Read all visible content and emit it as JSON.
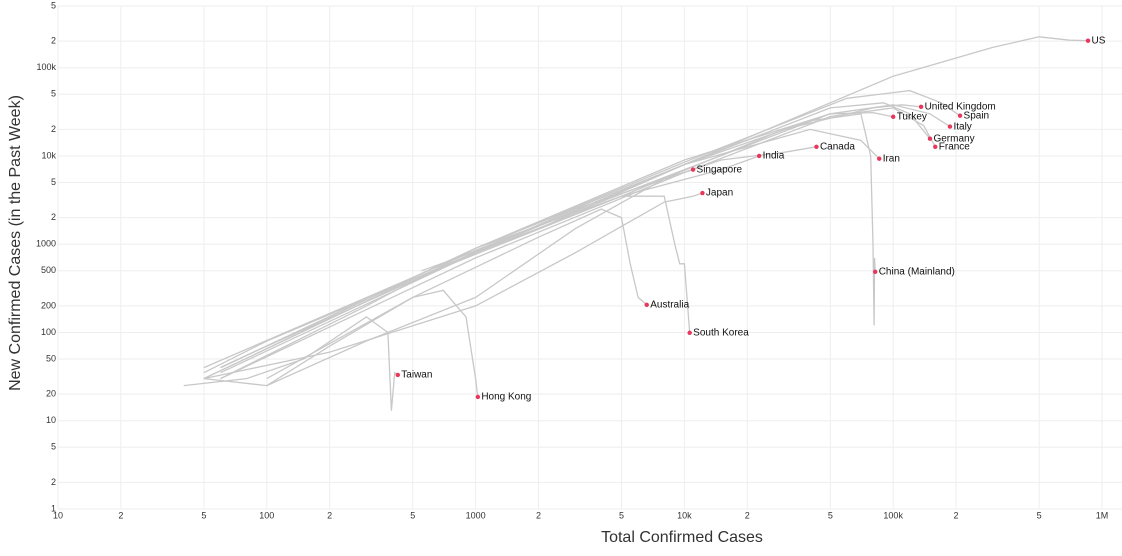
{
  "chart_data": {
    "type": "line",
    "x_label": "Total Confirmed Cases",
    "y_label": "New Confirmed Cases (in the Past Week)",
    "log_x": true,
    "log_y": true,
    "grid": true,
    "line_color": "#c8c8c8",
    "marker_color": "#e8375b",
    "axis_label_color": "#e0366b",
    "xlim": [
      10,
      1000000
    ],
    "ylim": [
      1,
      500000
    ],
    "xticks": [
      10,
      {
        "value": 20,
        "label": "2"
      },
      {
        "value": 50,
        "label": "5"
      },
      100,
      {
        "value": 200,
        "label": "2"
      },
      {
        "value": 500,
        "label": "5"
      },
      1000,
      {
        "value": 2000,
        "label": "2"
      },
      {
        "value": 5000,
        "label": "5"
      },
      {
        "value": 10000,
        "label": "10k"
      },
      {
        "value": 20000,
        "label": "2"
      },
      {
        "value": 50000,
        "label": "5"
      },
      {
        "value": 100000,
        "label": "100k"
      },
      {
        "value": 200000,
        "label": "2"
      },
      {
        "value": 500000,
        "label": "5"
      },
      {
        "value": 1000000,
        "label": "1M"
      }
    ],
    "yticks": [
      1,
      2,
      5,
      10,
      20,
      50,
      100,
      200,
      500,
      1000,
      {
        "value": 2000,
        "label": "2"
      },
      {
        "value": 5000,
        "label": "5"
      },
      {
        "value": 10000,
        "label": "10k"
      },
      {
        "value": 20000,
        "label": "2"
      },
      {
        "value": 50000,
        "label": "5"
      },
      {
        "value": 100000,
        "label": "100k"
      },
      {
        "value": 200000,
        "label": "2"
      },
      {
        "value": 500000,
        "label": "5"
      }
    ],
    "series": [
      {
        "name": "US",
        "x": [
          50,
          100,
          1000,
          10000,
          100000,
          300000,
          500000,
          700000,
          857000
        ],
        "y": [
          35,
          80,
          800,
          8000,
          80000,
          170000,
          224000,
          205000,
          202000
        ]
      },
      {
        "name": "United Kingdom",
        "x": [
          50,
          500,
          5000,
          30000,
          80000,
          110000,
          136000
        ],
        "y": [
          30,
          400,
          3500,
          20000,
          35000,
          38000,
          36000
        ]
      },
      {
        "name": "Spain",
        "x": [
          60,
          1000,
          10000,
          60000,
          120000,
          170000,
          209000
        ],
        "y": [
          40,
          900,
          8500,
          45000,
          55000,
          40000,
          28600
        ]
      },
      {
        "name": "Turkey",
        "x": [
          60,
          1000,
          10000,
          50000,
          80000,
          100000
        ],
        "y": [
          40,
          900,
          9000,
          30000,
          31000,
          27800
        ]
      },
      {
        "name": "Italy",
        "x": [
          50,
          1000,
          10000,
          50000,
          100000,
          150000,
          187000
        ],
        "y": [
          40,
          850,
          7000,
          30000,
          38000,
          30000,
          21500
        ]
      },
      {
        "name": "Germany",
        "x": [
          60,
          1000,
          10000,
          50000,
          90000,
          120000,
          150000
        ],
        "y": [
          35,
          800,
          8000,
          35000,
          40000,
          30000,
          15700
        ]
      },
      {
        "name": "France",
        "x": [
          60,
          1000,
          10000,
          50000,
          100000,
          140000,
          159000
        ],
        "y": [
          30,
          700,
          6500,
          28000,
          35000,
          22000,
          12700
        ]
      },
      {
        "name": "Canada",
        "x": [
          50,
          500,
          3000,
          15000,
          30000,
          42900
        ],
        "y": [
          30,
          400,
          2500,
          9000,
          11000,
          12700
        ]
      },
      {
        "name": "Iran",
        "x": [
          60,
          1000,
          10000,
          40000,
          70000,
          85700
        ],
        "y": [
          40,
          900,
          8000,
          20000,
          15000,
          9300
        ]
      },
      {
        "name": "India",
        "x": [
          60,
          300,
          1000,
          5000,
          15000,
          22800
        ],
        "y": [
          30,
          200,
          900,
          3500,
          7000,
          10000
        ]
      },
      {
        "name": "Singapore",
        "x": [
          100,
          300,
          1000,
          3000,
          8000,
          11000
        ],
        "y": [
          25,
          80,
          250,
          1500,
          5500,
          7000
        ]
      },
      {
        "name": "Japan",
        "x": [
          50,
          200,
          1000,
          3000,
          8000,
          11000,
          12200
        ],
        "y": [
          30,
          60,
          200,
          800,
          3000,
          3500,
          3800
        ]
      },
      {
        "name": "China (Mainland)",
        "x": [
          550,
          2000,
          10000,
          40000,
          70000,
          78000,
          80000,
          81000,
          81500,
          82000
        ],
        "y": [
          500,
          1500,
          8000,
          25000,
          30000,
          10000,
          1000,
          120,
          700,
          487
        ]
      },
      {
        "name": "Australia",
        "x": [
          100,
          500,
          2000,
          4000,
          5000,
          5500,
          6000,
          6600
        ],
        "y": [
          30,
          250,
          1200,
          2500,
          2000,
          600,
          250,
          206
        ]
      },
      {
        "name": "South Korea",
        "x": [
          100,
          1000,
          5000,
          8000,
          9000,
          9500,
          10000,
          10600
        ],
        "y": [
          70,
          800,
          3500,
          3500,
          1000,
          600,
          600,
          99
        ]
      },
      {
        "name": "Taiwan",
        "x": [
          40,
          80,
          150,
          300,
          380,
          395,
          410,
          424
        ],
        "y": [
          25,
          30,
          50,
          150,
          100,
          13,
          35,
          33
        ]
      },
      {
        "name": "Hong Kong",
        "x": [
          50,
          100,
          200,
          500,
          700,
          900,
          1000,
          1025
        ],
        "y": [
          30,
          25,
          70,
          250,
          300,
          150,
          30,
          18.6
        ]
      }
    ]
  }
}
